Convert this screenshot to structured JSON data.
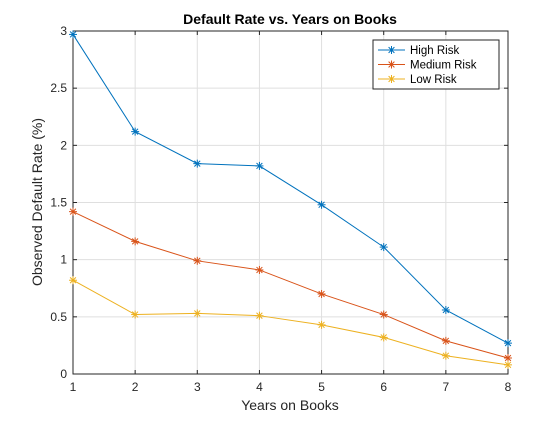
{
  "chart_data": {
    "type": "line",
    "title": "Default Rate vs. Years on Books",
    "xlabel": "Years on Books",
    "ylabel": "Observed Default Rate (%)",
    "x": [
      1,
      2,
      3,
      4,
      5,
      6,
      7,
      8
    ],
    "xlim": [
      1,
      8
    ],
    "ylim": [
      0,
      3
    ],
    "xticks": [
      "1",
      "2",
      "3",
      "4",
      "5",
      "6",
      "7",
      "8"
    ],
    "yticks": [
      "0",
      "0.5",
      "1",
      "1.5",
      "2",
      "2.5",
      "3"
    ],
    "grid": true,
    "legend_location": "top-right",
    "marker": "asterisk",
    "series": [
      {
        "name": "High Risk",
        "color": "#0072BD",
        "values": [
          2.97,
          2.12,
          1.84,
          1.82,
          1.48,
          1.11,
          0.56,
          0.27
        ]
      },
      {
        "name": "Medium Risk",
        "color": "#D95319",
        "values": [
          1.42,
          1.16,
          0.99,
          0.91,
          0.7,
          0.52,
          0.29,
          0.14
        ]
      },
      {
        "name": "Low Risk",
        "color": "#EDB120",
        "values": [
          0.82,
          0.52,
          0.53,
          0.51,
          0.43,
          0.32,
          0.16,
          0.08
        ]
      }
    ]
  }
}
